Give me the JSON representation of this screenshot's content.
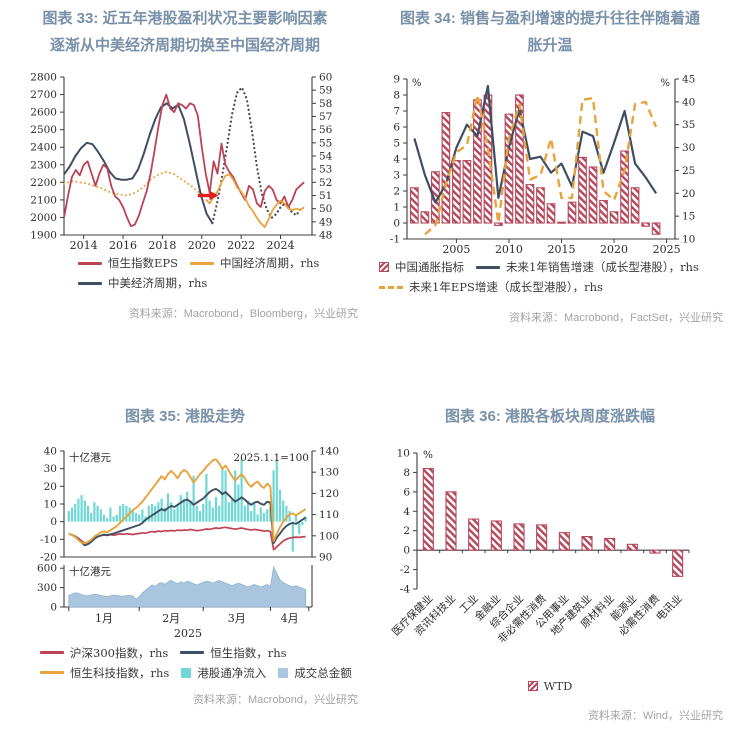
{
  "colors": {
    "red": "#bc4356",
    "orange": "#e8a33d",
    "navy": "#3e4f63",
    "navyDot": "#4a4a4a",
    "cyan": "#6fd8d4",
    "volume": "#a9c6de",
    "volumeEdge": "#8fb3d0",
    "hatch": "#b5485d",
    "arrow": "#e0201c",
    "title": "#7a90a8",
    "source": "#a3a3a3",
    "axis": "#3c3c3c"
  },
  "chart_data": [
    {
      "id": "fig33",
      "type": "line",
      "title_lines": [
        "图表 33: 近五年港股盈利状况主要影响因素",
        "逐渐从中美经济周期切换至中国经济周期"
      ],
      "source": "资料来源：Macrobond，Bloomberg，兴业研究",
      "left_axis": {
        "min": 1900,
        "max": 2800,
        "step": 100
      },
      "right_axis": {
        "min": 48,
        "max": 60,
        "step": 1
      },
      "x_axis": {
        "min": 2013,
        "max": 2025.6,
        "ticks": [
          2014,
          2016,
          2018,
          2020,
          2022,
          2024
        ]
      },
      "series": [
        {
          "name": "中国经济周期，rhs",
          "axis": "right",
          "dash": "dotted",
          "color": "orange",
          "width": 2.0,
          "x_start": 2013,
          "x_step": 0.4,
          "y": [
            51.9,
            52.1,
            52.0,
            51.9,
            51.7,
            51.5,
            51.2,
            51.1,
            51.0,
            51.2,
            51.6,
            52.2,
            52.6,
            52.8,
            52.6,
            52.2,
            51.8,
            51.3,
            51.0
          ]
        },
        {
          "name": "中美经济周期，rhs",
          "axis": "right",
          "dash": "dotted",
          "color": "navyDot",
          "width": 2.2,
          "x_start": 2020.54,
          "x_step": 0.25,
          "y": [
            48.9,
            50.5,
            52.5,
            54.8,
            57.2,
            58.8,
            59.2,
            58.3,
            56.0,
            53.3,
            51.2,
            50.0,
            49.3,
            49.6,
            50.2,
            50.4,
            49.8,
            49.5,
            50.0
          ]
        },
        {
          "name": "中美经济周期，rhs",
          "axis": "right",
          "dash": "solid",
          "color": "navy",
          "width": 2.0,
          "x_start": 2013,
          "x_step": 0.29,
          "y": [
            52.6,
            53.2,
            54.0,
            54.6,
            55.0,
            54.9,
            54.3,
            53.6,
            52.8,
            52.3,
            52.2,
            52.2,
            52.3,
            53.0,
            54.2,
            55.6,
            56.8,
            57.7,
            58.0,
            57.6,
            57.9,
            56.8,
            55.0,
            53.0,
            51.0,
            49.6,
            48.9
          ]
        },
        {
          "name": "恒生指数EPS",
          "axis": "left",
          "dash": "solid",
          "color": "red",
          "width": 1.8,
          "x_start": 2013,
          "x_step": 0.2,
          "y": [
            2000,
            2120,
            2230,
            2270,
            2240,
            2300,
            2320,
            2250,
            2180,
            2250,
            2300,
            2280,
            2180,
            2120,
            2100,
            2060,
            2000,
            1950,
            1960,
            2010,
            2080,
            2150,
            2250,
            2380,
            2520,
            2640,
            2700,
            2620,
            2600,
            2650,
            2640,
            2620,
            2650,
            2640,
            2580,
            2400,
            2250,
            2140,
            2320,
            2250,
            2420,
            2300,
            2260,
            2230,
            2180,
            2140,
            2100,
            2180,
            2160,
            2080,
            2060,
            2150,
            2180,
            2160,
            2100,
            2080,
            2120,
            2060,
            2100,
            2160,
            2180,
            2200
          ]
        },
        {
          "name": "中国经济周期，rhs",
          "axis": "right",
          "dash": "solid",
          "color": "orange",
          "width": 1.8,
          "x_start": 2020.2,
          "x_step": 0.2,
          "y": [
            50.7,
            50.4,
            50.9,
            51.3,
            52.0,
            52.5,
            52.6,
            52.2,
            51.6,
            51.3,
            50.8,
            50.2,
            49.8,
            49.3,
            48.9,
            48.6,
            49.2,
            49.9,
            50.3,
            50.6,
            50.4,
            50.0,
            49.9,
            50.0,
            49.9,
            50.1
          ]
        }
      ],
      "annotation_arrow": {
        "x1": 2019.8,
        "x2": 2020.85,
        "y": 51.0,
        "axis": "right"
      },
      "legend_rows": [
        [
          {
            "label": "恒生指数EPS",
            "swatch": "line",
            "color": "red"
          },
          {
            "label": "中国经济周期，rhs",
            "swatch": "line",
            "color": "orange"
          }
        ],
        [
          {
            "label": "中美经济周期，rhs",
            "swatch": "line",
            "color": "navy"
          }
        ]
      ]
    },
    {
      "id": "fig34",
      "type": "combo",
      "title_lines": [
        "图表 34: 销售与盈利增速的提升往往伴随着通",
        "胀升温"
      ],
      "source": "资料来源：Macrobond，FactSet，兴业研究",
      "left_axis": {
        "min": -1,
        "max": 9,
        "step": 1,
        "unit": "%"
      },
      "right_axis": {
        "min": 10,
        "max": 45,
        "step": 5,
        "unit": "%"
      },
      "x_axis": {
        "min": 2000.3,
        "max": 2025.8,
        "ticks": [
          2005,
          2010,
          2015,
          2020,
          2025
        ]
      },
      "bars": {
        "name": "中国通胀指标",
        "axis": "left",
        "x_start": 2001,
        "x_step": 1,
        "values": [
          2.2,
          0.7,
          3.2,
          6.9,
          3.9,
          3.9,
          7.7,
          8.0,
          -0.15,
          6.8,
          8.0,
          2.4,
          2.2,
          1.2,
          0.05,
          1.3,
          4.1,
          3.5,
          1.4,
          0.7,
          4.5,
          2.2,
          -0.2,
          -0.7
        ]
      },
      "series": [
        {
          "name": "未来1年销售增速（成长型港股），rhs",
          "axis": "right",
          "dash": "solid",
          "color": "navy",
          "width": 2.2,
          "x_start": 2001,
          "x_step": 1,
          "y": [
            32,
            24,
            18,
            22,
            30,
            35,
            32.5,
            43.5,
            19,
            30,
            38.5,
            27.5,
            28,
            24.5,
            26.5,
            21.5,
            33.5,
            32.5,
            24.5,
            31,
            38,
            26.5,
            23.5,
            20
          ]
        },
        {
          "name": "未来1年EPS增速（成长型港股），rhs",
          "axis": "right",
          "dash": "dash",
          "color": "orange",
          "width": 2.4,
          "x_start": 2002,
          "x_step": 1,
          "y": [
            11,
            13,
            22,
            29,
            30.5,
            41.5,
            30,
            13.5,
            32,
            39.5,
            23,
            24,
            32,
            19,
            19,
            40.5,
            40.8,
            20.5,
            18.5,
            25,
            39.5,
            40,
            34.5
          ]
        }
      ],
      "legend_rows": [
        [
          {
            "label": "中国通胀指标",
            "swatch": "hatch"
          },
          {
            "label": "未来1年销售增速（成长型港股），rhs",
            "swatch": "line",
            "color": "navy"
          }
        ],
        [
          {
            "label": "未来1年EPS增速（成长型港股），rhs",
            "swatch": "dash",
            "color": "orange"
          }
        ]
      ]
    },
    {
      "id": "fig35",
      "type": "line-bar-area",
      "title_lines": [
        "图表 35: 港股走势"
      ],
      "source": "资料来源：Macrobond，兴业研究",
      "panel_a": {
        "left_axis": {
          "min": -20,
          "max": 40,
          "step": 10
        },
        "right_axis": {
          "min": 90,
          "max": 140,
          "step": 10
        },
        "corner_left": "十亿港元",
        "corner_right": "2025.1.1=100",
        "bars": {
          "name": "港股通净流入",
          "color": "cyan",
          "values": [
            6,
            8,
            10,
            13,
            15,
            12,
            9,
            5,
            11,
            9,
            7,
            4,
            2,
            8,
            3,
            4,
            9,
            10,
            9,
            8,
            6,
            5,
            4,
            7,
            3,
            9,
            10,
            9,
            11,
            13,
            8,
            16,
            11,
            7,
            9,
            15,
            13,
            17,
            12,
            26,
            9,
            6,
            10,
            27,
            12,
            8,
            14,
            9,
            30,
            29,
            11,
            13,
            29,
            21,
            35.5,
            9,
            12,
            6,
            10,
            4,
            8,
            5,
            7,
            8,
            29,
            35,
            18,
            12,
            9,
            6,
            -17,
            4,
            -7,
            -2,
            3
          ]
        },
        "series": [
          {
            "name": "沪深300指数，rhs",
            "color": "red",
            "width": 1.7,
            "y": [
              101,
              100.4,
              99.8,
              98.8,
              97.6,
              96.6,
              96.9,
              97.6,
              98.6,
              99.6,
              100.1,
              100.4,
              100.2,
              100.5,
              100.3,
              100.6,
              100.9,
              100.7,
              101,
              100.8,
              100.6,
              100.9,
              101.1,
              101.4,
              101.2,
              101.7,
              102,
              101.8,
              102.2,
              102,
              102.4,
              102.2,
              102.5,
              102.3,
              102.7,
              102.5,
              102.8,
              102.6,
              103,
              102.7,
              102.4,
              102.6,
              102.9,
              103.2,
              103,
              103.4,
              103.7,
              103.5,
              103.8,
              104,
              103.7,
              103.4,
              103.1,
              103.4,
              103.7,
              103.3,
              103,
              102.7,
              103,
              102.8,
              102.5,
              102.2,
              102.4,
              102,
              93.5,
              94.8,
              96.2,
              97.6,
              98.4,
              98.9,
              99.2,
              99.4,
              99.3,
              99.5,
              99.6
            ]
          },
          {
            "name": "恒生指数，rhs",
            "color": "navy",
            "width": 1.9,
            "y": [
              101,
              100.4,
              99.6,
              98.4,
              96.9,
              95.5,
              96.1,
              97.1,
              98.6,
              99.6,
              100.1,
              100.6,
              100.3,
              100.7,
              101.1,
              101.6,
              102.1,
              102.6,
              103.1,
              103.6,
              104.1,
              104.6,
              105.1,
              106.1,
              107.6,
              108.6,
              109.6,
              110.6,
              111.6,
              112.6,
              111.9,
              113.1,
              114.1,
              113.6,
              114.6,
              115.6,
              116.6,
              117.1,
              116.1,
              114.6,
              115.6,
              116.6,
              117.6,
              119.1,
              120.6,
              121.6,
              122.1,
              121.1,
              119.6,
              120.6,
              119.1,
              117.6,
              116.1,
              117.1,
              118.1,
              117.1,
              115.6,
              114.6,
              115.6,
              116.1,
              115.1,
              114.6,
              116.1,
              115.6,
              96.5,
              99.1,
              101.1,
              103.1,
              104.6,
              105.6,
              106.1,
              105.6,
              106.6,
              107.6,
              108.6
            ]
          },
          {
            "name": "恒生科技指数，rhs",
            "color": "orange",
            "width": 1.9,
            "y": [
              101,
              100.3,
              99.5,
              98,
              96.8,
              96.5,
              97.1,
              98.1,
              99.6,
              100.6,
              101.6,
              102.1,
              101.6,
              102.6,
              103.6,
              104.6,
              106.1,
              107.6,
              109.1,
              110.6,
              112.1,
              113.1,
              114.6,
              116.1,
              118.1,
              120.1,
              122.1,
              124.1,
              126.1,
              128.1,
              126.6,
              129.1,
              130.6,
              129.1,
              127.1,
              129.6,
              131.1,
              130.1,
              127.6,
              125.1,
              127.1,
              129.1,
              130.6,
              132.6,
              134.1,
              135.6,
              136.1,
              134.1,
              131.6,
              133.1,
              130.6,
              128.1,
              126.1,
              127.6,
              129.1,
              127.1,
              124.6,
              123.1,
              124.6,
              125.6,
              123.6,
              122.6,
              124.6,
              123.1,
              97.5,
              101.1,
              104.1,
              106.6,
              108.6,
              110.1,
              110.6,
              109.6,
              110.6,
              111.6,
              112.6
            ]
          }
        ]
      },
      "panel_b": {
        "left_axis": {
          "min": 0,
          "max": 650,
          "ticks": [
            0,
            300,
            600
          ]
        },
        "corner_left": "十亿港元",
        "area": {
          "name": "成交总金额",
          "color": "volume",
          "values": [
            180,
            200,
            220,
            210,
            190,
            180,
            170,
            185,
            200,
            190,
            180,
            170,
            160,
            175,
            185,
            180,
            170,
            165,
            175,
            180,
            170,
            120,
            160,
            220,
            260,
            300,
            340,
            320,
            360,
            380,
            350,
            390,
            410,
            380,
            360,
            390,
            370,
            400,
            380,
            360,
            340,
            360,
            380,
            400,
            390,
            370,
            390,
            410,
            390,
            370,
            350,
            330,
            350,
            370,
            350,
            330,
            310,
            330,
            350,
            330,
            310,
            330,
            350,
            320,
            620,
            520,
            420,
            380,
            350,
            330,
            310,
            330,
            310,
            290,
            270
          ]
        }
      },
      "x_axis": {
        "boundaries": [
          0,
          22,
          42,
          63,
          75
        ],
        "month_labels": [
          {
            "label": "1月",
            "pos": 11
          },
          {
            "label": "2月",
            "pos": 32
          },
          {
            "label": "3月",
            "pos": 52.5
          },
          {
            "label": "4月",
            "pos": 69
          }
        ],
        "year_label": "2025"
      },
      "legend_rows": [
        [
          {
            "label": "沪深300指数，rhs",
            "swatch": "line",
            "color": "red"
          },
          {
            "label": "恒生指数，rhs",
            "swatch": "line",
            "color": "navy"
          }
        ],
        [
          {
            "label": "恒生科技指数，rhs",
            "swatch": "line",
            "color": "orange"
          },
          {
            "label": "港股通净流入",
            "swatch": "sq",
            "color": "cyan"
          },
          {
            "label": "成交总金额",
            "swatch": "sq",
            "color": "volume"
          }
        ]
      ]
    },
    {
      "id": "fig36",
      "type": "bar",
      "title_lines": [
        "图表 36: 港股各板块周度涨跌幅"
      ],
      "source": "资料来源：Wind，兴业研究",
      "left_axis": {
        "min": -4,
        "max": 10,
        "step": 2,
        "unit": "%"
      },
      "categories": [
        "医疗保健业",
        "资讯科技业",
        "工业",
        "金融业",
        "综合企业",
        "非必需性消费",
        "公用事业",
        "地产建筑业",
        "原材料业",
        "能源业",
        "必需性消费",
        "电讯业"
      ],
      "values": [
        8.4,
        6.0,
        3.2,
        3.0,
        2.7,
        2.6,
        1.8,
        1.4,
        1.2,
        0.6,
        -0.3,
        -2.7
      ],
      "legend_rows": [
        [
          {
            "label": "WTD",
            "swatch": "hatch"
          }
        ]
      ]
    }
  ]
}
